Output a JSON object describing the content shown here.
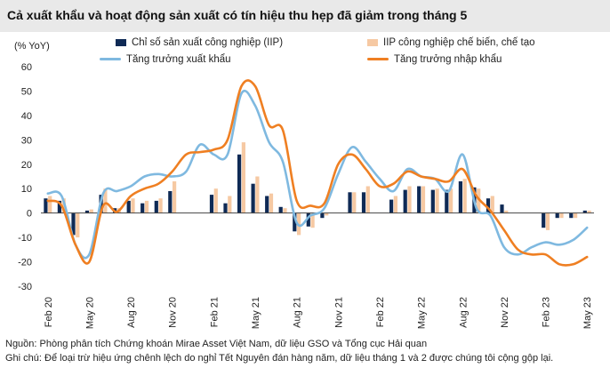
{
  "title": "Cả xuất khẩu và hoạt động sản xuất có tín hiệu thu hẹp đã giảm trong tháng 5",
  "source": "Nguồn: Phòng phân tích Chứng khoán Mirae Asset Việt Nam, dữ liệu GSO và Tổng cục Hải quan",
  "note": "Ghi chú: Để loại trừ hiệu ứng chênh lệch do nghỉ Tết Nguyên đán hàng năm, dữ liệu tháng 1 và 2 được chúng tôi cộng gộp lại.",
  "colors": {
    "iip": "#0f2a55",
    "iip_mfg": "#f6c9a3",
    "export": "#7fb9e0",
    "import": "#ef7f22"
  },
  "chart_data": {
    "type": "bar+line",
    "ylabel": "(% YoY)",
    "ylim": [
      -30,
      60
    ],
    "yticks": [
      -30,
      -20,
      -10,
      0,
      10,
      20,
      30,
      40,
      50,
      60
    ],
    "x": [
      "Feb 20",
      "Mar 20",
      "Apr 20",
      "May 20",
      "Jun 20",
      "Jul 20",
      "Aug 20",
      "Sep 20",
      "Oct 20",
      "Nov 20",
      "Dec 20",
      "Jan 21",
      "Feb 21",
      "Mar 21",
      "Apr 21",
      "May 21",
      "Jun 21",
      "Jul 21",
      "Aug 21",
      "Sep 21",
      "Oct 21",
      "Nov 21",
      "Dec 21",
      "Jan 22",
      "Feb 22",
      "Mar 22",
      "Apr 22",
      "May 22",
      "Jun 22",
      "Jul 22",
      "Aug 22",
      "Sep 22",
      "Oct 22",
      "Nov 22",
      "Dec 22",
      "Jan 23",
      "Feb 23",
      "Mar 23",
      "Apr 23",
      "May 23"
    ],
    "xtick_labels": [
      "Feb 20",
      "May 20",
      "Aug 20",
      "Nov 20",
      "Feb 21",
      "May 21",
      "Aug 21",
      "Nov 21",
      "Feb 22",
      "May 22",
      "Aug 22",
      "Nov 22",
      "Feb 23",
      "May 23"
    ],
    "series": [
      {
        "name": "Chỉ số sản xuất công nghiệp (IIP)",
        "kind": "bar",
        "values": [
          6,
          5,
          -9,
          1,
          7.5,
          2,
          5,
          4,
          5,
          9,
          0,
          0,
          7.5,
          4,
          24,
          12,
          7,
          2.5,
          -7.5,
          -5.5,
          -2,
          0,
          8.5,
          8.5,
          0,
          5.5,
          9.5,
          11,
          9.5,
          9.5,
          13,
          10.5,
          6,
          3.5,
          0,
          0,
          -6,
          -2,
          -2,
          1
        ]
      },
      {
        "name": "IIP công nghiệp chế biến, chế tạo",
        "kind": "bar",
        "values": [
          7,
          6,
          -10,
          1.5,
          10,
          2,
          6,
          5,
          6,
          13,
          0,
          0,
          10,
          7,
          29,
          15,
          8,
          2,
          -9,
          -6,
          -1,
          0,
          8.5,
          11,
          0,
          7,
          11,
          11,
          10,
          10,
          14,
          10,
          7,
          1,
          0,
          0,
          -7,
          -2,
          -2,
          1
        ]
      },
      {
        "name": "Tăng trưởng xuất khẩu",
        "kind": "line",
        "values": [
          8,
          7,
          -13,
          -17,
          8,
          9,
          11,
          15,
          16,
          15,
          17,
          28,
          24,
          24,
          49,
          44,
          29,
          21,
          -4,
          -1,
          2,
          16,
          27,
          21,
          14,
          9,
          18,
          15,
          14,
          9,
          24,
          2,
          -1,
          -14,
          -17,
          -14,
          -12,
          -13,
          -11,
          -6
        ]
      },
      {
        "name": "Tăng trưởng nhập khẩu",
        "kind": "line",
        "values": [
          5,
          3,
          -13,
          -20,
          3,
          0.5,
          7,
          10,
          12,
          17,
          24,
          25,
          26,
          30,
          52,
          52,
          36,
          34,
          5,
          3,
          4,
          20,
          24,
          18,
          11,
          12,
          17,
          15,
          14,
          13,
          18,
          7,
          1,
          -7,
          -15,
          -17,
          -17,
          -21,
          -21,
          -18
        ]
      }
    ]
  }
}
